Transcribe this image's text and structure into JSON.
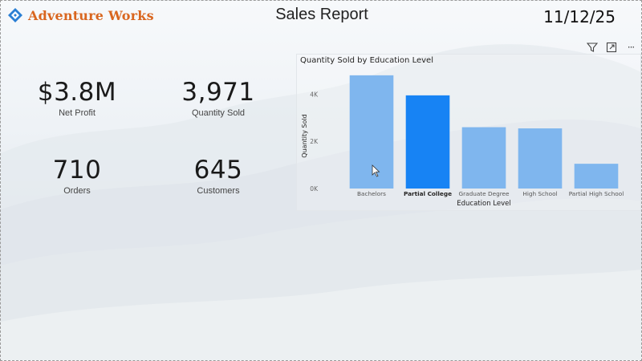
{
  "header": {
    "logo_text": "Adventure Works",
    "title": "Sales Report",
    "date": "11/12/25"
  },
  "kpis": [
    {
      "value": "$3.8M",
      "label": "Net Profit"
    },
    {
      "value": "3,971",
      "label": "Quantity Sold"
    },
    {
      "value": "710",
      "label": "Orders"
    },
    {
      "value": "645",
      "label": "Customers"
    }
  ],
  "toolbar": {
    "icons": [
      "filter-icon",
      "focus-mode-icon",
      "more-options-icon"
    ],
    "more_label": "···"
  },
  "colors": {
    "brand": "#d9661f",
    "bar": "#7fb6ee",
    "bar_highlight": "#1783f4"
  },
  "chart_data": {
    "type": "bar",
    "title": "Quantity Sold by Education Level",
    "xlabel": "Education Level",
    "ylabel": "Quantity Sold",
    "categories": [
      "Bachelors",
      "Partial College",
      "Graduate Degree",
      "High School",
      "Partial High School"
    ],
    "values": [
      4800,
      3950,
      2600,
      2550,
      1050
    ],
    "highlighted": "Partial College",
    "yticks": [
      0,
      2000,
      4000
    ],
    "ytick_labels": [
      "0K",
      "2K",
      "4K"
    ],
    "ylim": [
      0,
      5000
    ],
    "grid": false
  }
}
